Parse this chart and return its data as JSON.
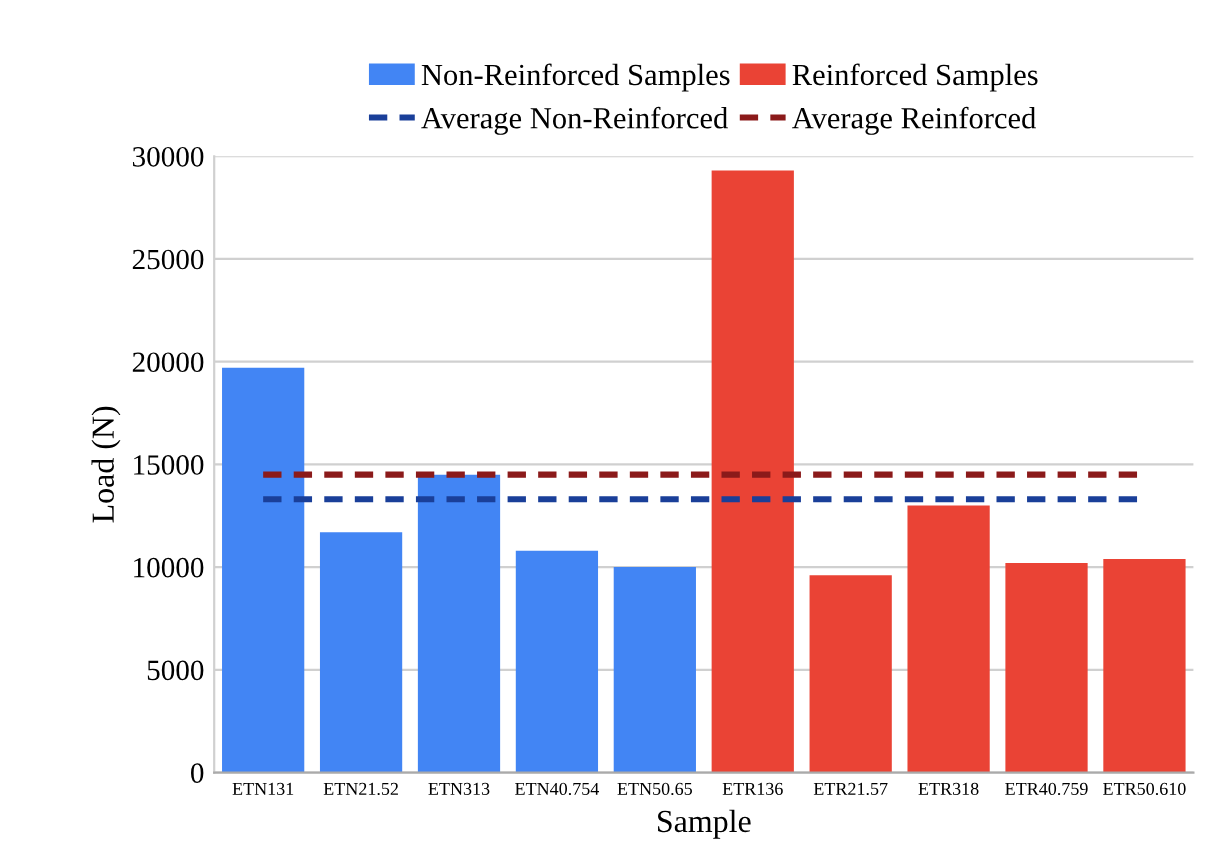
{
  "chart_data": {
    "type": "bar",
    "xlabel": "Sample",
    "ylabel": "Load (N)",
    "categories": [
      "ETN131",
      "ETN21.52",
      "ETN313",
      "ETN40.754",
      "ETN50.65",
      "ETR136",
      "ETR21.57",
      "ETR318",
      "ETR40.759",
      "ETR50.610"
    ],
    "series": [
      {
        "name": "Non-Reinforced Samples",
        "color": "#4285f4",
        "values": [
          19700,
          11700,
          14500,
          10800,
          10000,
          null,
          null,
          null,
          null,
          null
        ]
      },
      {
        "name": "Reinforced Samples",
        "color": "#ea4335",
        "values": [
          null,
          null,
          null,
          null,
          null,
          29300,
          9600,
          13000,
          10200,
          10400
        ]
      },
      {
        "name": "Average Non-Reinforced",
        "type": "line",
        "line_style": "dashed",
        "color": "#1a3f99",
        "values": [
          13300,
          13300,
          13300,
          13300,
          13300,
          13300,
          13300,
          13300,
          13300,
          13300
        ]
      },
      {
        "name": "Average Reinforced",
        "type": "line",
        "line_style": "dashed",
        "color": "#8b1a1a",
        "values": [
          14500,
          14500,
          14500,
          14500,
          14500,
          14500,
          14500,
          14500,
          14500,
          14500
        ]
      }
    ],
    "ylim": [
      0,
      30000
    ],
    "yticks": [
      0,
      5000,
      10000,
      15000,
      20000,
      25000,
      30000
    ],
    "grid": "y",
    "legend": "top"
  }
}
